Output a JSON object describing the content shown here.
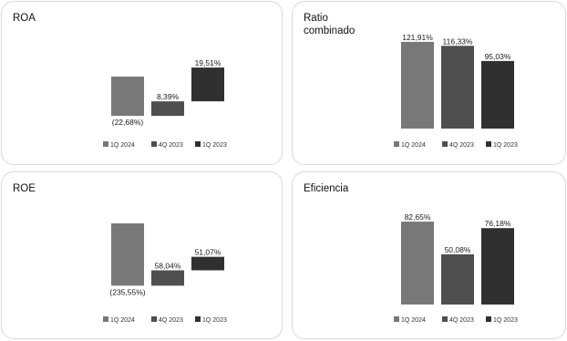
{
  "colors": {
    "s1": "#787878",
    "s2": "#4f4f4f",
    "s3": "#303030"
  },
  "legend": [
    "1Q 2024",
    "4Q 2023",
    "1Q 2023"
  ],
  "chart_data": [
    {
      "id": "roa",
      "type": "bar",
      "title": "ROA",
      "categories": [
        "1Q 2024",
        "4Q 2023",
        "1Q 2023"
      ],
      "values": [
        -22.68,
        8.39,
        19.51
      ],
      "labels": [
        "(22,68%)",
        "8,39%",
        "19,51%"
      ],
      "layout": "waterfall"
    },
    {
      "id": "ratio",
      "type": "bar",
      "title": "Ratio\ncombinado",
      "categories": [
        "1Q 2024",
        "4Q 2023",
        "1Q 2023"
      ],
      "values": [
        121.91,
        116.33,
        95.03
      ],
      "labels": [
        "121,91%",
        "116,33%",
        "95,03%"
      ],
      "layout": "columns"
    },
    {
      "id": "roe",
      "type": "bar",
      "title": "ROE",
      "categories": [
        "1Q 2024",
        "4Q 2023",
        "1Q 2023"
      ],
      "values": [
        -235.55,
        58.04,
        51.07
      ],
      "labels": [
        "(235,55%)",
        "58,04%",
        "51,07%"
      ],
      "layout": "waterfall"
    },
    {
      "id": "eficiencia",
      "type": "bar",
      "title": "Eficiencia",
      "categories": [
        "1Q 2024",
        "4Q 2023",
        "1Q 2023"
      ],
      "values": [
        82.65,
        50.08,
        76.18
      ],
      "labels": [
        "82,65%",
        "50,08%",
        "76,18%"
      ],
      "layout": "columns"
    }
  ]
}
